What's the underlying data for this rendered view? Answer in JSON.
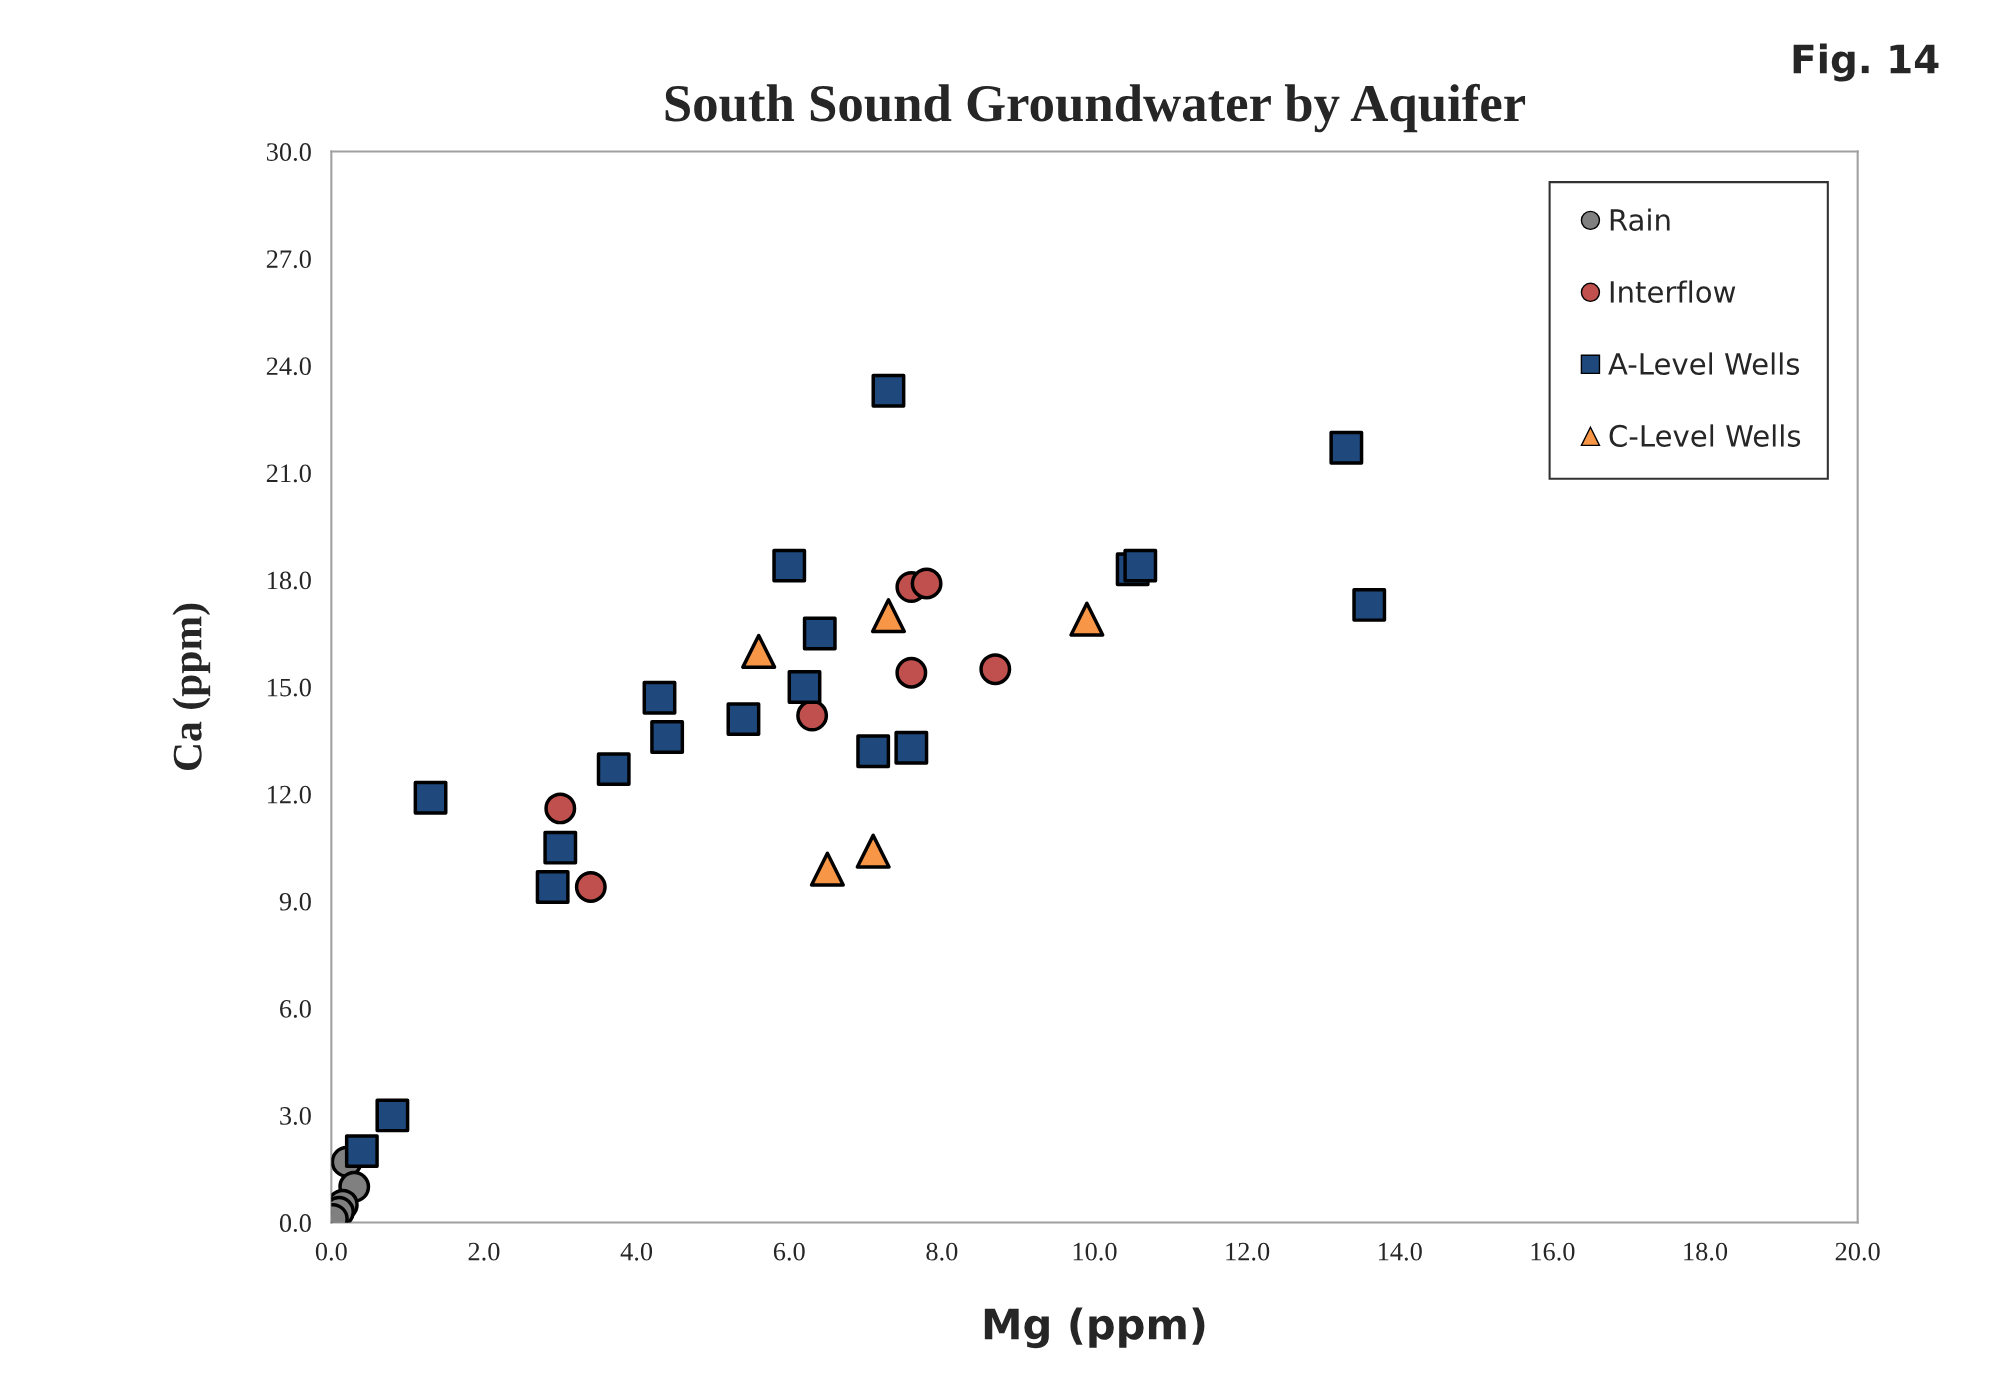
{
  "chart_data": {
    "type": "scatter",
    "title": "South Sound Groundwater by Aquifer",
    "xlabel": "Mg (ppm)",
    "ylabel": "Ca (ppm)",
    "annotations": [
      "Fig. 14"
    ],
    "xlim": [
      0,
      20
    ],
    "ylim": [
      0,
      30
    ],
    "xticks": [
      {
        "value": 0,
        "label": "0.0"
      },
      {
        "value": 2,
        "label": "2.0"
      },
      {
        "value": 4,
        "label": "4.0"
      },
      {
        "value": 6,
        "label": "6.0"
      },
      {
        "value": 8,
        "label": "8.0"
      },
      {
        "value": 10,
        "label": "10.0"
      },
      {
        "value": 12,
        "label": "12.0"
      },
      {
        "value": 14,
        "label": "14.0"
      },
      {
        "value": 16,
        "label": "16.0"
      },
      {
        "value": 18,
        "label": "18.0"
      },
      {
        "value": 20,
        "label": "20.0"
      }
    ],
    "yticks": [
      {
        "value": 0,
        "label": "0.0"
      },
      {
        "value": 3,
        "label": "3.0"
      },
      {
        "value": 6,
        "label": "6.0"
      },
      {
        "value": 9,
        "label": "9.0"
      },
      {
        "value": 12,
        "label": "12.0"
      },
      {
        "value": 15,
        "label": "15.0"
      },
      {
        "value": 18,
        "label": "18.0"
      },
      {
        "value": 21,
        "label": "21.0"
      },
      {
        "value": 24,
        "label": "24.0"
      },
      {
        "value": 27,
        "label": "27.0"
      },
      {
        "value": 30,
        "label": "30.0"
      }
    ],
    "grid": false,
    "legend": "top right",
    "series": [
      {
        "name": "Rain",
        "color": "#808080",
        "marker": "circle",
        "x": [
          0.2,
          0.3,
          0.15,
          0.1,
          0.02
        ],
        "values": [
          1.7,
          1.0,
          0.5,
          0.3,
          0.1
        ]
      },
      {
        "name": "Interflow",
        "color": "#c0504d",
        "marker": "circle",
        "x": [
          3.0,
          3.4,
          6.3,
          7.6,
          8.7,
          7.6,
          7.8
        ],
        "values": [
          11.6,
          9.4,
          14.2,
          15.4,
          15.5,
          17.8,
          17.9
        ]
      },
      {
        "name": "A-Level Wells",
        "color": "#1f497d",
        "marker": "square",
        "x": [
          7.3,
          13.3,
          10.5,
          10.6,
          13.6,
          6.0,
          6.4,
          4.3,
          6.2,
          5.4,
          4.4,
          3.7,
          7.1,
          7.6,
          1.3,
          3.0,
          2.9,
          0.8,
          0.4
        ],
        "values": [
          23.3,
          21.7,
          18.3,
          18.4,
          17.3,
          18.4,
          16.5,
          14.7,
          15.0,
          14.1,
          13.6,
          12.7,
          13.2,
          13.3,
          11.9,
          10.5,
          9.4,
          3.0,
          2.0
        ]
      },
      {
        "name": "C-Level Wells",
        "color": "#f79646",
        "marker": "triangle",
        "x": [
          5.6,
          7.3,
          9.9,
          6.5,
          7.1
        ],
        "values": [
          16.0,
          17.0,
          16.9,
          9.9,
          10.4
        ]
      }
    ]
  }
}
